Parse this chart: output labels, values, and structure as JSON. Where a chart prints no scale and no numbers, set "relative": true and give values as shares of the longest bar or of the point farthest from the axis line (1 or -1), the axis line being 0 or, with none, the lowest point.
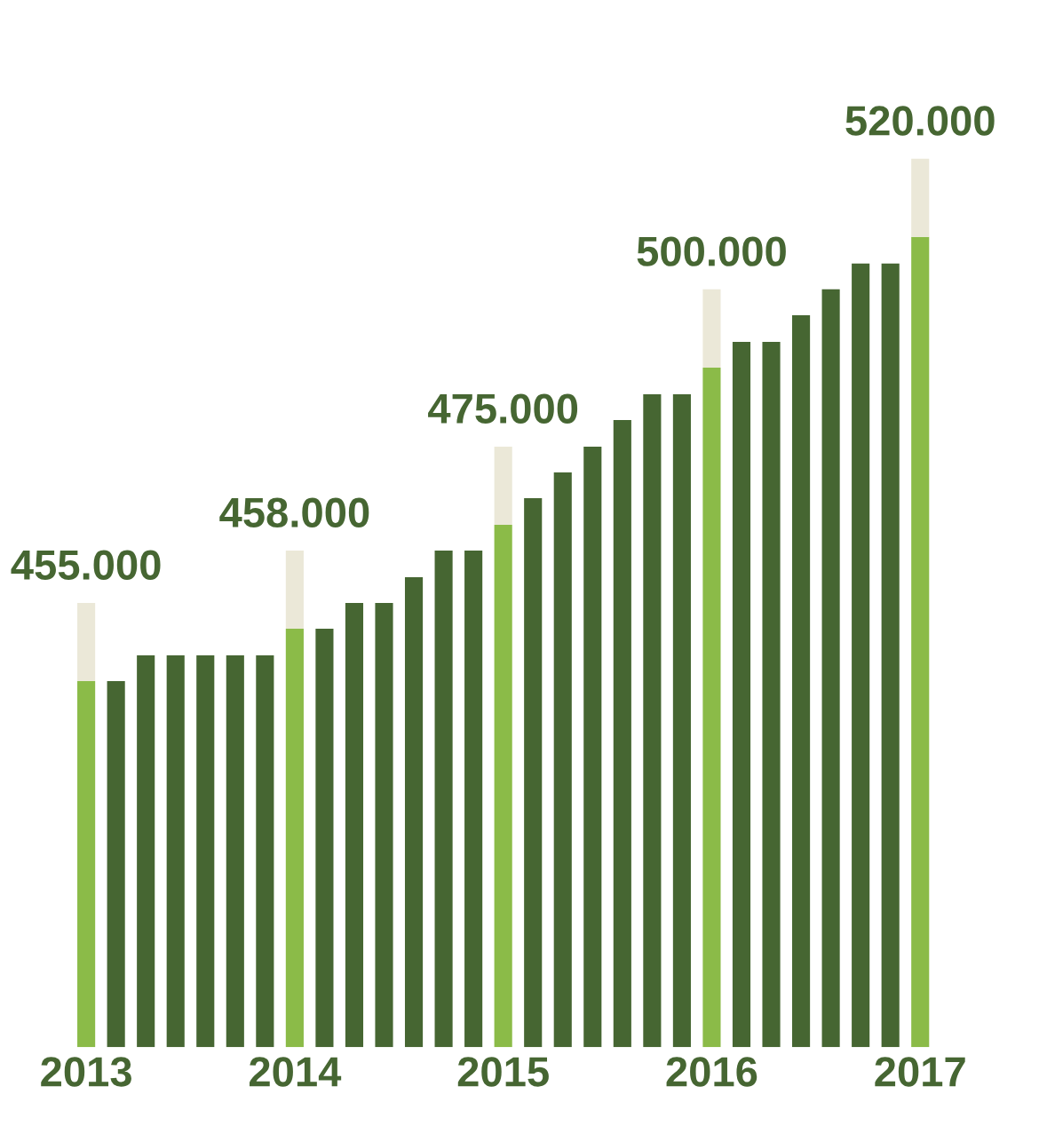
{
  "chart_data": {
    "type": "bar",
    "relative": true,
    "stacked": true,
    "grid": false,
    "categories": [
      "2013",
      null,
      null,
      null,
      null,
      null,
      null,
      "2014",
      null,
      null,
      null,
      null,
      null,
      null,
      "2015",
      null,
      null,
      null,
      null,
      null,
      null,
      "2016",
      null,
      null,
      null,
      null,
      null,
      null,
      "2017"
    ],
    "series": [
      {
        "colors": [
          "#8bbb48",
          "#466632",
          "#466632",
          "#466632",
          "#466632",
          "#466632",
          "#466632",
          "#8bbb48",
          "#466632",
          "#466632",
          "#466632",
          "#466632",
          "#466632",
          "#466632",
          "#8bbb48",
          "#466632",
          "#466632",
          "#466632",
          "#466632",
          "#466632",
          "#466632",
          "#8bbb48",
          "#466632",
          "#466632",
          "#466632",
          "#466632",
          "#466632",
          "#466632",
          "#8bbb48"
        ],
        "values": [
          0.412,
          0.412,
          0.441,
          0.441,
          0.441,
          0.441,
          0.441,
          0.471,
          0.471,
          0.5,
          0.5,
          0.529,
          0.559,
          0.559,
          0.588,
          0.618,
          0.647,
          0.676,
          0.706,
          0.735,
          0.735,
          0.765,
          0.794,
          0.794,
          0.824,
          0.853,
          0.882,
          0.882,
          0.912
        ]
      },
      {
        "color": "#ebe8d8",
        "values": [
          0.088,
          0,
          0,
          0,
          0,
          0,
          0,
          0.088,
          0,
          0,
          0,
          0,
          0,
          0,
          0.088,
          0,
          0,
          0,
          0,
          0,
          0,
          0.088,
          0,
          0,
          0,
          0,
          0,
          0,
          0.088
        ]
      }
    ],
    "annotations": [
      {
        "text": "455.000",
        "x": "2013",
        "y": 0.5
      },
      {
        "text": "458.000",
        "x": "2014",
        "y": 0.559
      },
      {
        "text": "475.000",
        "x": "2015",
        "y": 0.676
      },
      {
        "text": "500.000",
        "x": "2016",
        "y": 0.853
      },
      {
        "text": "520.000",
        "x": "2017",
        "y": 1.0
      }
    ]
  }
}
